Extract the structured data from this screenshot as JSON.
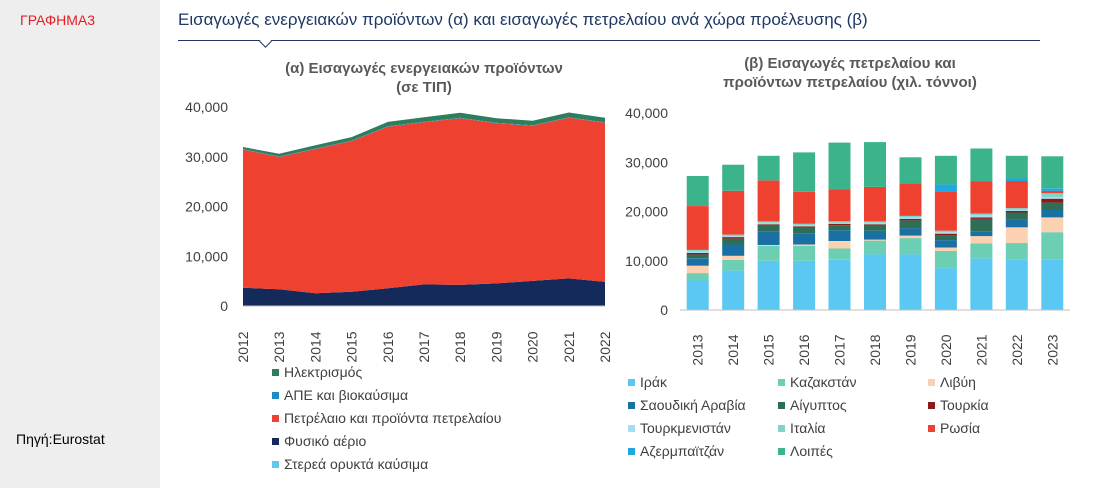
{
  "fig_label": "ΓΡΑΦΗΜΑ3",
  "source": "Πηγή:Eurostat",
  "main_title": "Εισαγωγές ενεργειακών προϊόντων (α) και εισαγωγές πετρελαίου ανά χώρα προέλευσης (β)",
  "colors": {
    "electricity": "#2e7d5b",
    "renewables": "#1f8bc0",
    "oil": "#ef4130",
    "natural_gas": "#142a5a",
    "solid_fuels": "#63c8f0",
    "iraq": "#5bc8f3",
    "saudi": "#1a6fa3",
    "turkmenistan": "#a4dcf5",
    "azerbaijan": "#1fa8df",
    "kazakhstan": "#6ccfb4",
    "egypt": "#2f6e56",
    "italy": "#7fd6c8",
    "others": "#3bb48c",
    "libya": "#fcd1b2",
    "turkey": "#8b1a1a",
    "russia": "#ef4130"
  },
  "chart_data": [
    {
      "type": "area",
      "title": "(α) Εισαγωγές ενεργειακών προϊόντων (σε ΤΙΠ)",
      "title_lines": [
        "(α) Εισαγωγές ενεργειακών προϊόντων",
        "(σε ΤΙΠ)"
      ],
      "x": [
        "2012",
        "2013",
        "2014",
        "2015",
        "2016",
        "2017",
        "2018",
        "2019",
        "2020",
        "2021",
        "2022"
      ],
      "ylim": [
        0,
        40000
      ],
      "yticks": [
        "0",
        "10,000",
        "20,000",
        "30,000",
        "40,000"
      ],
      "grid": false,
      "legend_position": "bottom",
      "series": [
        {
          "name": "Στερεά ορυκτά καύσιμα",
          "color_key": "solid_fuels",
          "values": [
            50,
            50,
            50,
            50,
            50,
            50,
            50,
            50,
            50,
            50,
            50
          ]
        },
        {
          "name": "Φυσικό αέριο",
          "color_key": "natural_gas",
          "values": [
            3600,
            3300,
            2500,
            2800,
            3500,
            4300,
            4200,
            4500,
            5000,
            5500,
            4800
          ]
        },
        {
          "name": "Πετρέλαιο και προϊόντα πετρελαίου",
          "color_key": "oil",
          "values": [
            27800,
            26600,
            29000,
            30300,
            32500,
            32600,
            33500,
            32200,
            31200,
            32300,
            32000
          ]
        },
        {
          "name": "ΑΠΕ και βιοκαύσιμα",
          "color_key": "renewables",
          "values": [
            100,
            100,
            100,
            100,
            100,
            100,
            100,
            100,
            100,
            100,
            100
          ]
        },
        {
          "name": "Ηλεκτρισμός",
          "color_key": "electricity",
          "values": [
            400,
            550,
            650,
            700,
            850,
            900,
            1000,
            900,
            900,
            950,
            900
          ]
        }
      ],
      "legend": [
        "Ηλεκτρισμός",
        "ΑΠΕ και βιοκαύσιμα",
        "Πετρέλαιο και προϊόντα πετρελαίου",
        "Φυσικό αέριο",
        "Στερεά ορυκτά καύσιμα"
      ]
    },
    {
      "type": "bar",
      "stacked": true,
      "title": "(β) Εισαγωγές πετρελαίου και προϊόντων πετρελαίου (χιλ. τόννοι)",
      "title_lines": [
        "(β) Εισαγωγές πετρελαίου και",
        "προϊόντων πετρελαίου (χιλ. τόννοι)"
      ],
      "categories": [
        "2013",
        "2014",
        "2015",
        "2016",
        "2017",
        "2018",
        "2019",
        "2020",
        "2021",
        "2022",
        "2023"
      ],
      "ylim": [
        0,
        40000
      ],
      "yticks": [
        "0",
        "10,000",
        "20,000",
        "30,000",
        "40,000"
      ],
      "grid": false,
      "legend_position": "bottom",
      "series": [
        {
          "name": "Ιράκ",
          "color_key": "iraq",
          "values": [
            6000,
            8000,
            10000,
            10000,
            10300,
            11300,
            11300,
            8500,
            10500,
            10300,
            10300
          ]
        },
        {
          "name": "Καζακστάν",
          "color_key": "kazakhstan",
          "values": [
            1500,
            2200,
            3000,
            3000,
            2200,
            2800,
            3300,
            3500,
            3000,
            3300,
            5500
          ]
        },
        {
          "name": "Λιβύη",
          "color_key": "libya",
          "values": [
            1500,
            800,
            200,
            300,
            1500,
            200,
            500,
            700,
            1500,
            3200,
            3000
          ]
        },
        {
          "name": "Σαουδική Αραβία",
          "color_key": "saudi",
          "values": [
            1500,
            2300,
            2700,
            2200,
            2200,
            1800,
            1500,
            1500,
            1000,
            1500,
            1500
          ]
        },
        {
          "name": "Αίγυπτος",
          "color_key": "egypt",
          "values": [
            800,
            1200,
            1200,
            1200,
            1000,
            1000,
            1600,
            1000,
            2500,
            1500,
            1500
          ]
        },
        {
          "name": "Τουρκία",
          "color_key": "turkey",
          "values": [
            300,
            300,
            300,
            300,
            300,
            300,
            300,
            300,
            300,
            300,
            800
          ]
        },
        {
          "name": "Τουρκμενιστάν",
          "color_key": "turkmenistan",
          "values": [
            300,
            200,
            300,
            200,
            200,
            300,
            300,
            300,
            500,
            300,
            300
          ]
        },
        {
          "name": "Ιταλία",
          "color_key": "italy",
          "values": [
            300,
            300,
            300,
            300,
            300,
            300,
            300,
            300,
            300,
            300,
            800
          ]
        },
        {
          "name": "Ρωσία",
          "color_key": "russia",
          "values": [
            8900,
            8900,
            8300,
            6500,
            6500,
            7000,
            6600,
            8000,
            6500,
            5500,
            500
          ]
        },
        {
          "name": "Αζερμπαϊτζάν",
          "color_key": "azerbaijan",
          "values": [
            0,
            0,
            0,
            0,
            0,
            0,
            0,
            1400,
            0,
            500,
            500
          ]
        },
        {
          "name": "Λοιπές",
          "color_key": "others",
          "values": [
            6100,
            5300,
            5000,
            8000,
            9500,
            9100,
            5300,
            5800,
            6700,
            4600,
            6500
          ]
        }
      ],
      "legend": [
        [
          "Ιράκ",
          "Καζακστάν",
          "Λιβύη"
        ],
        [
          "Σαουδική Αραβία",
          "Αίγυπτος",
          "Τουρκία"
        ],
        [
          "Τουρκμενιστάν",
          "Ιταλία",
          "Ρωσία"
        ],
        [
          "Αζερμπαϊτζάν",
          "Λοιπές",
          ""
        ]
      ]
    }
  ]
}
